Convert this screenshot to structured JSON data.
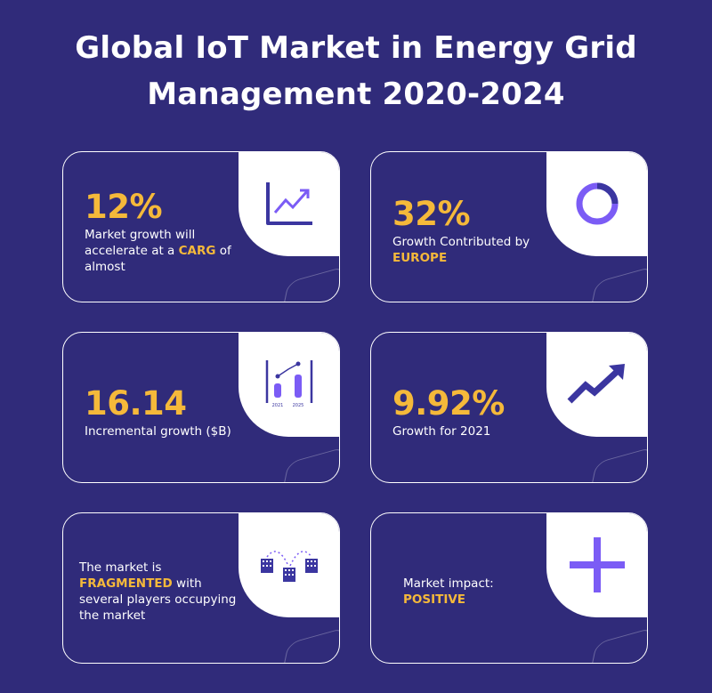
{
  "title": {
    "line1": "Global IoT Market in Energy Grid",
    "line2": "Management 2020-2024"
  },
  "colors": {
    "background": "#302b7a",
    "accent": "#f5b93a",
    "icon_purple": "#7b5cf5",
    "icon_navy": "#3b36a0"
  },
  "cards": [
    {
      "value": "12%",
      "desc_part1": "Market growth will accelerate at a ",
      "highlight": "CARG",
      "desc_part2": " of almost",
      "icon": "line-chart-icon"
    },
    {
      "value": "32%",
      "desc_part1": "Growth Contributed by ",
      "highlight": "EUROPE",
      "icon": "donut-chart-icon"
    },
    {
      "value": "16.14",
      "desc_part1": "Incremental growth ($B)",
      "icon": "bar-growth-chart-icon",
      "icon_label_left": "2021",
      "icon_label_right": "2025"
    },
    {
      "value": "9.92%",
      "desc_part1": "Growth for 2021",
      "icon": "trend-arrow-icon"
    },
    {
      "desc_part1": "The market is ",
      "highlight": "FRAGMENTED",
      "desc_part2": " with several players occupying the market",
      "icon": "buildings-icon"
    },
    {
      "desc_part1": "Market impact:",
      "highlight": "POSITIVE",
      "icon": "plus-icon"
    }
  ]
}
